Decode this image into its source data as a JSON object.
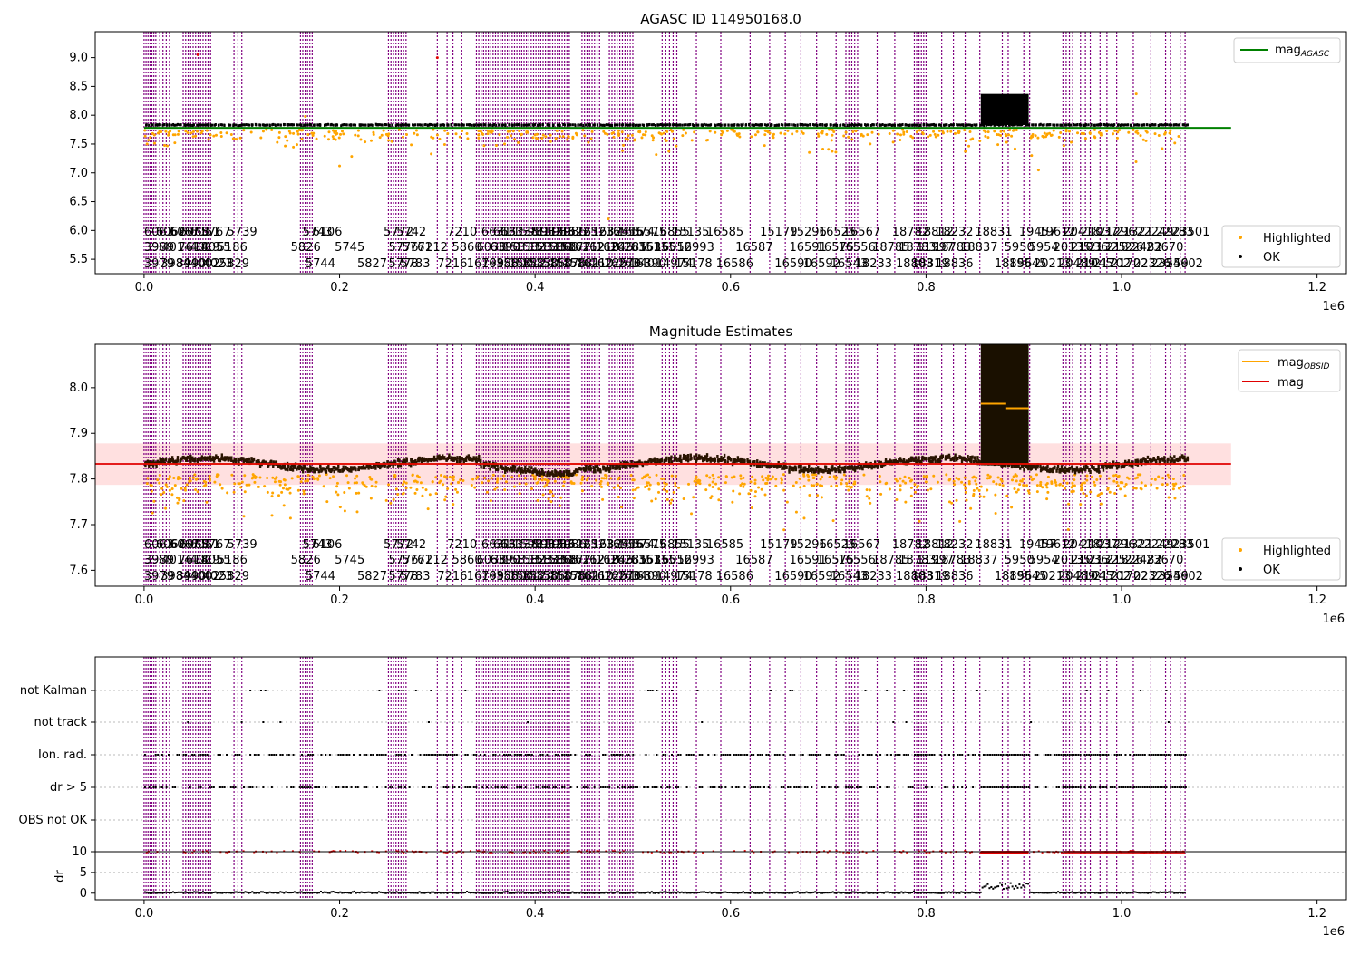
{
  "figure": {
    "top_title": "AGASC ID 114950168.0",
    "mid_title": "Magnitude Estimates",
    "x_exponent": "1e6",
    "x_ticks": [
      "0.0",
      "0.2",
      "0.4",
      "0.6",
      "0.8",
      "1.0",
      "1.2"
    ]
  },
  "legends": {
    "top": {
      "line_base": "mag",
      "line_sub": "AGASC"
    },
    "mid": {
      "line1_base": "mag",
      "line1_sub": "OBSID",
      "line2": "mag"
    },
    "points": [
      "Highlighted",
      "OK"
    ]
  },
  "chart_data": [
    {
      "type": "scatter",
      "title": "AGASC ID 114950168.0",
      "xlim": [
        -50000,
        1230000
      ],
      "ylim": [
        5.25,
        9.45
      ],
      "yticks": [
        "5.5",
        "6.0",
        "6.5",
        "7.0",
        "7.5",
        "8.0",
        "8.5",
        "9.0"
      ],
      "mag_agasc": 7.78,
      "x_extent": [
        0,
        1065000
      ],
      "baseline_mag": 7.83,
      "bump": {
        "x": [
          856000,
          905000
        ],
        "mag": [
          8.25,
          8.35
        ]
      },
      "series": [
        {
          "name": "Highlighted",
          "color": "#ffa500"
        },
        {
          "name": "OK",
          "color": "#000000"
        }
      ],
      "legend_position": "lower right"
    },
    {
      "type": "scatter",
      "title": "Magnitude Estimates",
      "xlim": [
        -50000,
        1230000
      ],
      "ylim": [
        7.565,
        8.095
      ],
      "yticks": [
        "7.6",
        "7.7",
        "7.8",
        "7.9",
        "8.0"
      ],
      "mag": 7.833,
      "mag_band": [
        7.787,
        7.878
      ],
      "mag_obsid_high": [
        {
          "x": [
            856000,
            882000
          ],
          "value": 7.965
        },
        {
          "x": [
            882000,
            905000
          ],
          "value": 7.955
        }
      ],
      "series": [
        {
          "name": "Highlighted",
          "color": "#ffa500"
        },
        {
          "name": "OK",
          "color": "#000000"
        }
      ],
      "legend_position": "lower right"
    },
    {
      "type": "scatter",
      "title": "",
      "categories": [
        "not Kalman",
        "not track",
        "Ion. rad.",
        "dr > 5",
        "OBS not OK"
      ],
      "xlim": [
        -50000,
        1230000
      ]
    },
    {
      "type": "scatter",
      "ylabel": "dr",
      "ylim": [
        -0.5,
        10.5
      ],
      "yticks": [
        "0",
        "5",
        "10"
      ],
      "xlim": [
        -50000,
        1230000
      ]
    }
  ],
  "obsid_rows": {
    "row1": [
      {
        "t": "6063",
        "x": 0.0
      },
      {
        "t": "6062",
        "x": 0.012
      },
      {
        "t": "6067",
        "x": 0.026
      },
      {
        "t": "6068",
        "x": 0.036
      },
      {
        "t": "6051",
        "x": 0.047
      },
      {
        "t": "5767",
        "x": 0.058
      },
      {
        "t": "5739",
        "x": 0.085
      },
      {
        "t": "5743",
        "x": 0.162
      },
      {
        "t": "6106",
        "x": 0.172
      },
      {
        "t": "5772",
        "x": 0.245
      },
      {
        "t": "5742",
        "x": 0.258
      },
      {
        "t": "7210",
        "x": 0.31
      },
      {
        "t": "6631",
        "x": 0.345
      },
      {
        "t": "6633",
        "x": 0.357
      },
      {
        "t": "16138",
        "x": 0.365
      },
      {
        "t": "15981",
        "x": 0.377
      },
      {
        "t": "15982",
        "x": 0.39
      },
      {
        "t": "15983",
        "x": 0.402
      },
      {
        "t": "15986",
        "x": 0.414
      },
      {
        "t": "16225",
        "x": 0.426
      },
      {
        "t": "16323",
        "x": 0.442
      },
      {
        "t": "16324",
        "x": 0.458
      },
      {
        "t": "16555",
        "x": 0.472
      },
      {
        "t": "16574",
        "x": 0.484
      },
      {
        "t": "16575",
        "x": 0.496
      },
      {
        "t": "16855",
        "x": 0.52
      },
      {
        "t": "15135",
        "x": 0.54
      },
      {
        "t": "16585",
        "x": 0.575
      },
      {
        "t": "15179",
        "x": 0.63
      },
      {
        "t": "15296",
        "x": 0.66
      },
      {
        "t": "16525",
        "x": 0.69
      },
      {
        "t": "16567",
        "x": 0.715
      },
      {
        "t": "18782",
        "x": 0.765
      },
      {
        "t": "18812",
        "x": 0.79
      },
      {
        "t": "18232",
        "x": 0.81
      },
      {
        "t": "18831",
        "x": 0.85
      },
      {
        "t": "19457",
        "x": 0.895
      },
      {
        "t": "19612",
        "x": 0.915
      },
      {
        "t": "20418",
        "x": 0.94
      },
      {
        "t": "21037",
        "x": 0.958
      },
      {
        "t": "21296",
        "x": 0.976
      },
      {
        "t": "21321",
        "x": 0.994
      },
      {
        "t": "22249",
        "x": 1.015
      },
      {
        "t": "22283",
        "x": 1.035
      },
      {
        "t": "23501",
        "x": 1.052
      }
    ],
    "row2": [
      {
        "t": "3989",
        "x": 0.0
      },
      {
        "t": "4014",
        "x": 0.018
      },
      {
        "t": "7618",
        "x": 0.035
      },
      {
        "t": "4019",
        "x": 0.047
      },
      {
        "t": "4055",
        "x": 0.058
      },
      {
        "t": "5186",
        "x": 0.075
      },
      {
        "t": "5826",
        "x": 0.15
      },
      {
        "t": "5745",
        "x": 0.195
      },
      {
        "t": "5776",
        "x": 0.25
      },
      {
        "t": "5761",
        "x": 0.264
      },
      {
        "t": "7212",
        "x": 0.28
      },
      {
        "t": "5860",
        "x": 0.315
      },
      {
        "t": "6038",
        "x": 0.34
      },
      {
        "t": "6390",
        "x": 0.354
      },
      {
        "t": "15813",
        "x": 0.367
      },
      {
        "t": "15823",
        "x": 0.38
      },
      {
        "t": "15833",
        "x": 0.393
      },
      {
        "t": "15868",
        "x": 0.406
      },
      {
        "t": "15877",
        "x": 0.419
      },
      {
        "t": "16212",
        "x": 0.433
      },
      {
        "t": "16218",
        "x": 0.448
      },
      {
        "t": "16246",
        "x": 0.462
      },
      {
        "t": "16285",
        "x": 0.476
      },
      {
        "t": "16351",
        "x": 0.49
      },
      {
        "t": "16355",
        "x": 0.506
      },
      {
        "t": "16052",
        "x": 0.522
      },
      {
        "t": "16993",
        "x": 0.545
      },
      {
        "t": "16587",
        "x": 0.605
      },
      {
        "t": "16591",
        "x": 0.66
      },
      {
        "t": "16575",
        "x": 0.688
      },
      {
        "t": "16556",
        "x": 0.71
      },
      {
        "t": "18785",
        "x": 0.745
      },
      {
        "t": "18783",
        "x": 0.772
      },
      {
        "t": "11997",
        "x": 0.79
      },
      {
        "t": "18783",
        "x": 0.808
      },
      {
        "t": "18837",
        "x": 0.835
      },
      {
        "t": "5950",
        "x": 0.88
      },
      {
        "t": "5954",
        "x": 0.905
      },
      {
        "t": "20135",
        "x": 0.93
      },
      {
        "t": "21036",
        "x": 0.948
      },
      {
        "t": "21325",
        "x": 0.966
      },
      {
        "t": "21826",
        "x": 0.984
      },
      {
        "t": "22482",
        "x": 1.003
      },
      {
        "t": "23670",
        "x": 1.025
      }
    ],
    "row3": [
      {
        "t": "3979",
        "x": 0.0
      },
      {
        "t": "3984",
        "x": 0.017
      },
      {
        "t": "3990",
        "x": 0.033
      },
      {
        "t": "4002",
        "x": 0.047
      },
      {
        "t": "4023",
        "x": 0.06
      },
      {
        "t": "5829",
        "x": 0.077
      },
      {
        "t": "5744",
        "x": 0.165
      },
      {
        "t": "5827",
        "x": 0.218
      },
      {
        "t": "5778",
        "x": 0.25
      },
      {
        "t": "5783",
        "x": 0.262
      },
      {
        "t": "7216",
        "x": 0.3
      },
      {
        "t": "16799",
        "x": 0.33
      },
      {
        "t": "16386",
        "x": 0.345
      },
      {
        "t": "15800",
        "x": 0.36
      },
      {
        "t": "15812",
        "x": 0.373
      },
      {
        "t": "15830",
        "x": 0.386
      },
      {
        "t": "15860",
        "x": 0.4
      },
      {
        "t": "15876",
        "x": 0.414
      },
      {
        "t": "15881",
        "x": 0.428
      },
      {
        "t": "16210",
        "x": 0.442
      },
      {
        "t": "16225",
        "x": 0.456
      },
      {
        "t": "16270",
        "x": 0.47
      },
      {
        "t": "16340",
        "x": 0.484
      },
      {
        "t": "16390",
        "x": 0.496
      },
      {
        "t": "14974",
        "x": 0.523
      },
      {
        "t": "15178",
        "x": 0.543
      },
      {
        "t": "16586",
        "x": 0.585
      },
      {
        "t": "16590",
        "x": 0.645
      },
      {
        "t": "16592",
        "x": 0.674
      },
      {
        "t": "16543",
        "x": 0.702
      },
      {
        "t": "18233",
        "x": 0.727
      },
      {
        "t": "18803",
        "x": 0.769
      },
      {
        "t": "18819",
        "x": 0.785
      },
      {
        "t": "18836",
        "x": 0.81
      },
      {
        "t": "18856",
        "x": 0.87
      },
      {
        "t": "19545",
        "x": 0.885
      },
      {
        "t": "20213",
        "x": 0.91
      },
      {
        "t": "20489",
        "x": 0.935
      },
      {
        "t": "21045",
        "x": 0.953
      },
      {
        "t": "21702",
        "x": 0.971
      },
      {
        "t": "21702",
        "x": 0.989
      },
      {
        "t": "22326",
        "x": 1.012
      },
      {
        "t": "23559",
        "x": 1.03
      },
      {
        "t": "24602",
        "x": 1.045
      }
    ]
  }
}
